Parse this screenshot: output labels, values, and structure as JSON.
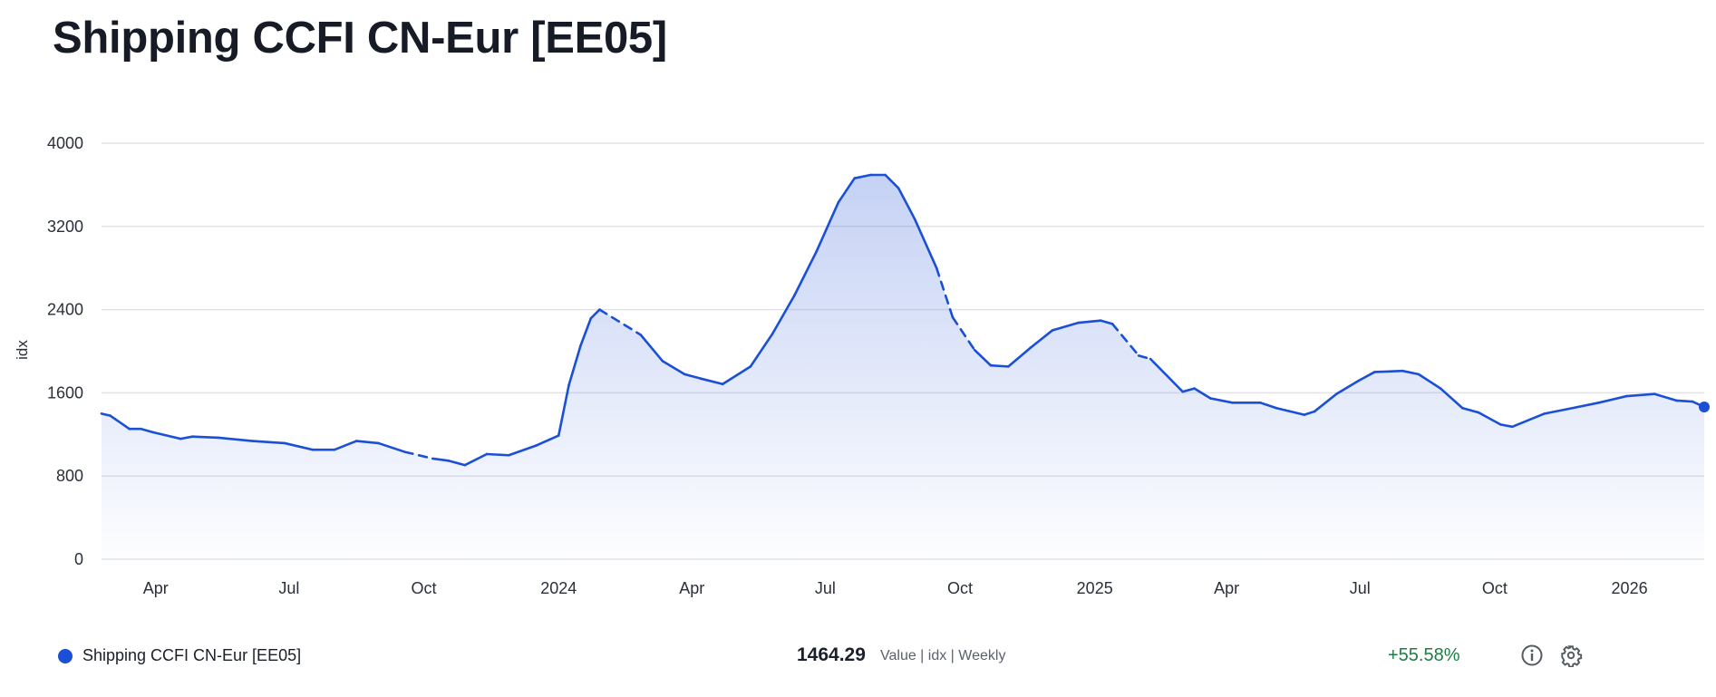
{
  "title": "Shipping CCFI CN-Eur [EE05]",
  "legend": {
    "series_name": "Shipping CCFI CN-Eur [EE05]",
    "last_value": "1464.29",
    "meta": "Value | idx | Weekly",
    "change": "+55.58%",
    "icons": [
      "info-icon",
      "gear-icon"
    ]
  },
  "colors": {
    "line": "#1a4fd6",
    "change_positive": "#1e7d45"
  },
  "chart_data": {
    "type": "area",
    "title": "",
    "xlabel": "",
    "ylabel": "idx",
    "ylim": [
      0,
      4000
    ],
    "yticks": [
      0,
      800,
      1600,
      2400,
      3200,
      4000
    ],
    "xlim": [
      "2023-02-23",
      "2026-02-21"
    ],
    "xticks": [
      {
        "date": "2023-04-01",
        "label": "Apr"
      },
      {
        "date": "2023-07-01",
        "label": "Jul"
      },
      {
        "date": "2023-10-01",
        "label": "Oct"
      },
      {
        "date": "2024-01-01",
        "label": "2024"
      },
      {
        "date": "2024-04-01",
        "label": "Apr"
      },
      {
        "date": "2024-07-01",
        "label": "Jul"
      },
      {
        "date": "2024-10-01",
        "label": "Oct"
      },
      {
        "date": "2025-01-01",
        "label": "2025"
      },
      {
        "date": "2025-04-01",
        "label": "Apr"
      },
      {
        "date": "2025-07-01",
        "label": "Jul"
      },
      {
        "date": "2025-10-01",
        "label": "Oct"
      },
      {
        "date": "2026-01-01",
        "label": "2026"
      }
    ],
    "grid": true,
    "legend": "bottom",
    "dashed_ranges": [
      [
        "2023-09-25",
        "2023-10-12"
      ],
      [
        "2024-01-29",
        "2024-02-24"
      ],
      [
        "2024-09-12",
        "2024-10-06"
      ],
      [
        "2025-01-13",
        "2025-02-06"
      ]
    ],
    "series": [
      {
        "name": "Shipping CCFI CN-Eur [EE05]",
        "x": [
          "2023-02-23",
          "2023-03-01",
          "2023-03-14",
          "2023-03-22",
          "2023-03-30",
          "2023-04-18",
          "2023-04-26",
          "2023-05-14",
          "2023-06-06",
          "2023-06-28",
          "2023-07-17",
          "2023-08-01",
          "2023-08-16",
          "2023-08-31",
          "2023-09-18",
          "2023-10-07",
          "2023-10-18",
          "2023-10-29",
          "2023-11-13",
          "2023-11-28",
          "2023-12-17",
          "2024-01-01",
          "2024-01-08",
          "2024-01-16",
          "2024-01-23",
          "2024-01-29",
          "2024-02-26",
          "2024-03-12",
          "2024-03-27",
          "2024-04-07",
          "2024-04-22",
          "2024-05-11",
          "2024-05-26",
          "2024-06-10",
          "2024-06-25",
          "2024-07-10",
          "2024-07-21",
          "2024-08-01",
          "2024-08-11",
          "2024-08-20",
          "2024-08-31",
          "2024-09-15",
          "2024-09-26",
          "2024-10-11",
          "2024-10-22",
          "2024-11-03",
          "2024-11-18",
          "2024-12-03",
          "2024-12-21",
          "2025-01-05",
          "2025-01-13",
          "2025-01-31",
          "2025-02-08",
          "2025-03-02",
          "2025-03-10",
          "2025-03-21",
          "2025-04-05",
          "2025-04-24",
          "2025-05-05",
          "2025-05-24",
          "2025-05-31",
          "2025-06-15",
          "2025-06-30",
          "2025-07-11",
          "2025-07-30",
          "2025-08-10",
          "2025-08-25",
          "2025-09-09",
          "2025-09-20",
          "2025-10-05",
          "2025-10-13",
          "2025-11-04",
          "2025-11-23",
          "2025-12-11",
          "2025-12-30",
          "2026-01-18",
          "2026-02-02",
          "2026-02-13",
          "2026-02-21"
        ],
        "values": [
          1400,
          1380,
          1253,
          1253,
          1221,
          1158,
          1179,
          1168,
          1137,
          1116,
          1053,
          1053,
          1137,
          1116,
          1032,
          968,
          947,
          905,
          1011,
          1000,
          1095,
          1189,
          1674,
          2053,
          2316,
          2400,
          2158,
          1905,
          1779,
          1737,
          1684,
          1853,
          2168,
          2537,
          2958,
          3432,
          3663,
          3695,
          3695,
          3568,
          3274,
          2800,
          2326,
          2011,
          1863,
          1853,
          2032,
          2200,
          2274,
          2295,
          2263,
          1958,
          1926,
          1611,
          1642,
          1547,
          1505,
          1505,
          1453,
          1389,
          1421,
          1589,
          1716,
          1800,
          1811,
          1779,
          1642,
          1453,
          1411,
          1295,
          1274,
          1400,
          1453,
          1505,
          1568,
          1589,
          1526,
          1516,
          1464.29
        ]
      }
    ]
  }
}
